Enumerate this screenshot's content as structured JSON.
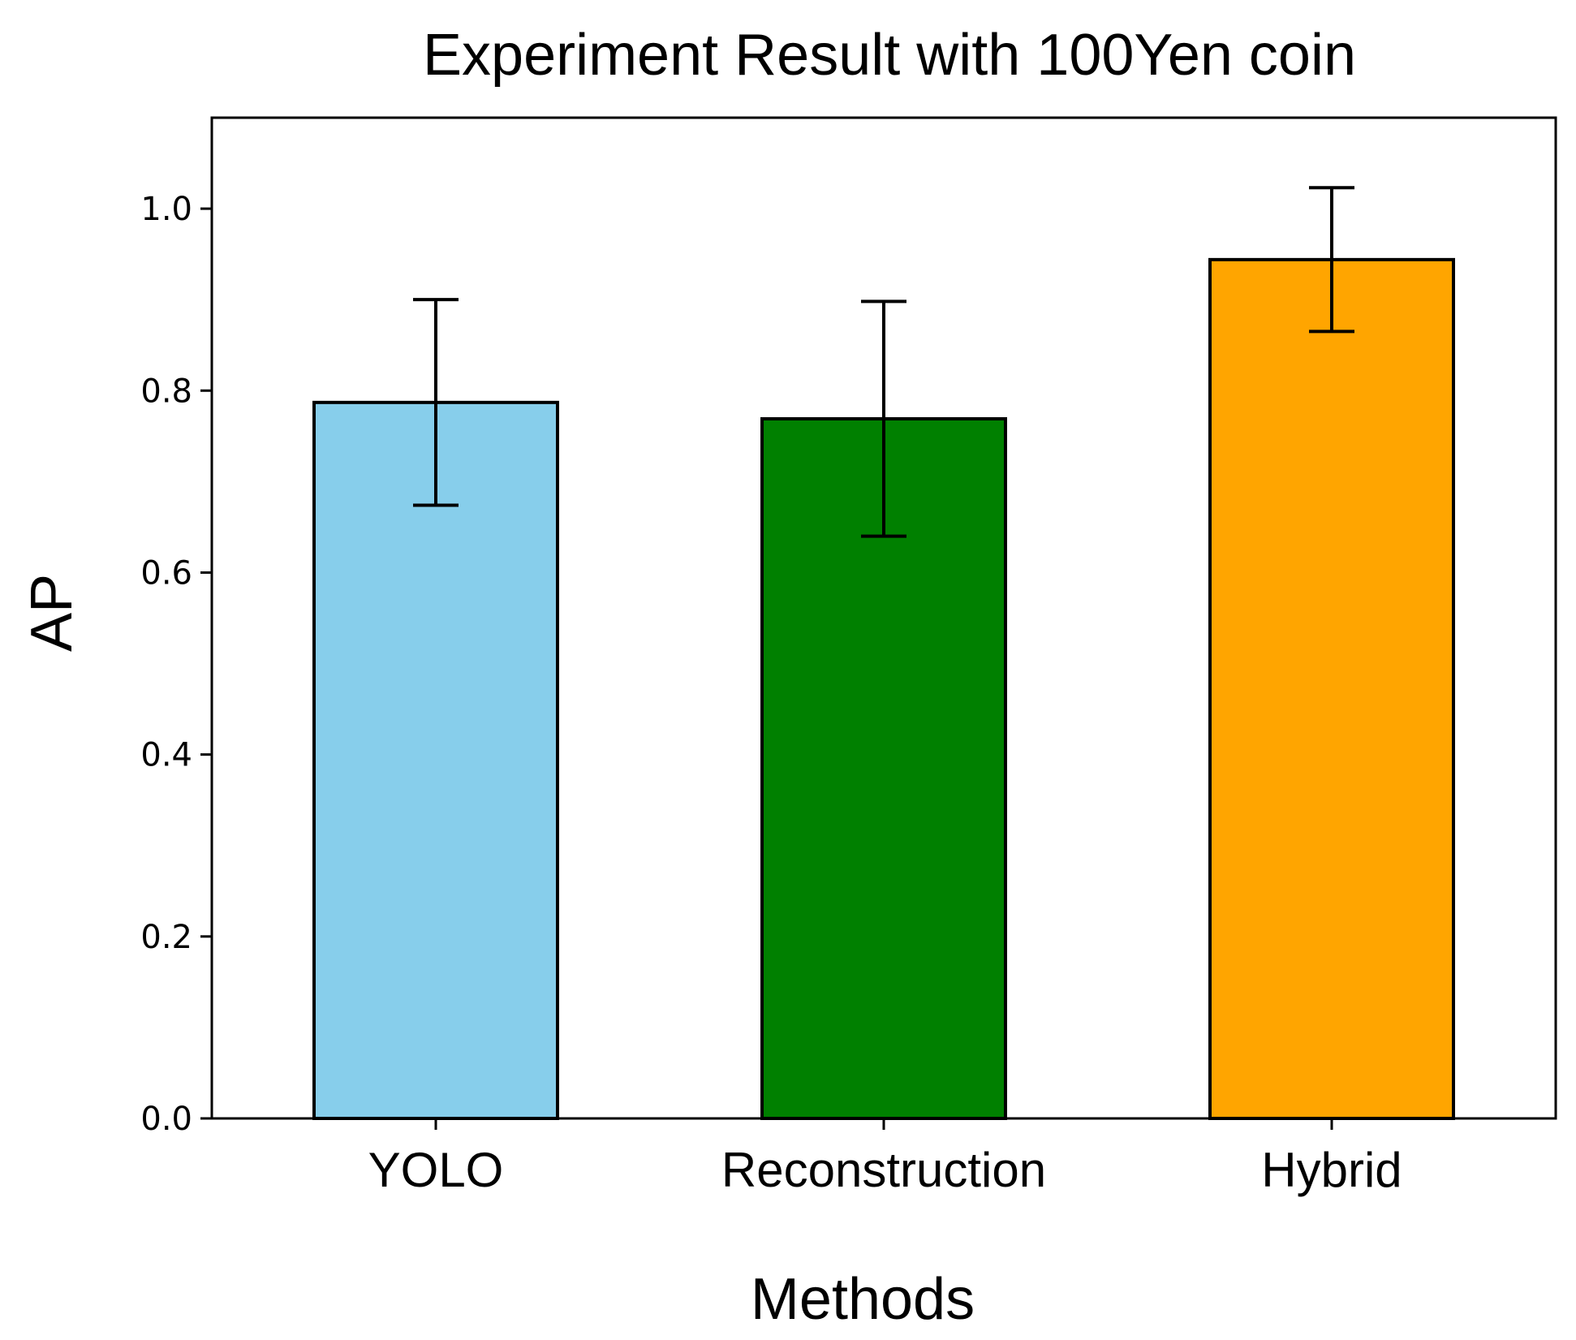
{
  "chart_data": {
    "type": "bar",
    "title": "Experiment Result with 100Yen coin",
    "xlabel": "Methods",
    "ylabel": "AP",
    "categories": [
      "YOLO",
      "Reconstruction",
      "Hybrid"
    ],
    "values": [
      0.787,
      0.769,
      0.944
    ],
    "error": [
      0.113,
      0.129,
      0.079
    ],
    "colors": [
      "#87CEEB",
      "#008000",
      "#FFA500"
    ],
    "ylim": [
      0,
      1.1
    ],
    "yticks": [
      0.0,
      0.2,
      0.4,
      0.6,
      0.8,
      1.0
    ],
    "ytick_labels": [
      "0.0",
      "0.2",
      "0.4",
      "0.6",
      "0.8",
      "1.0"
    ],
    "grid": false,
    "legend": "none"
  }
}
